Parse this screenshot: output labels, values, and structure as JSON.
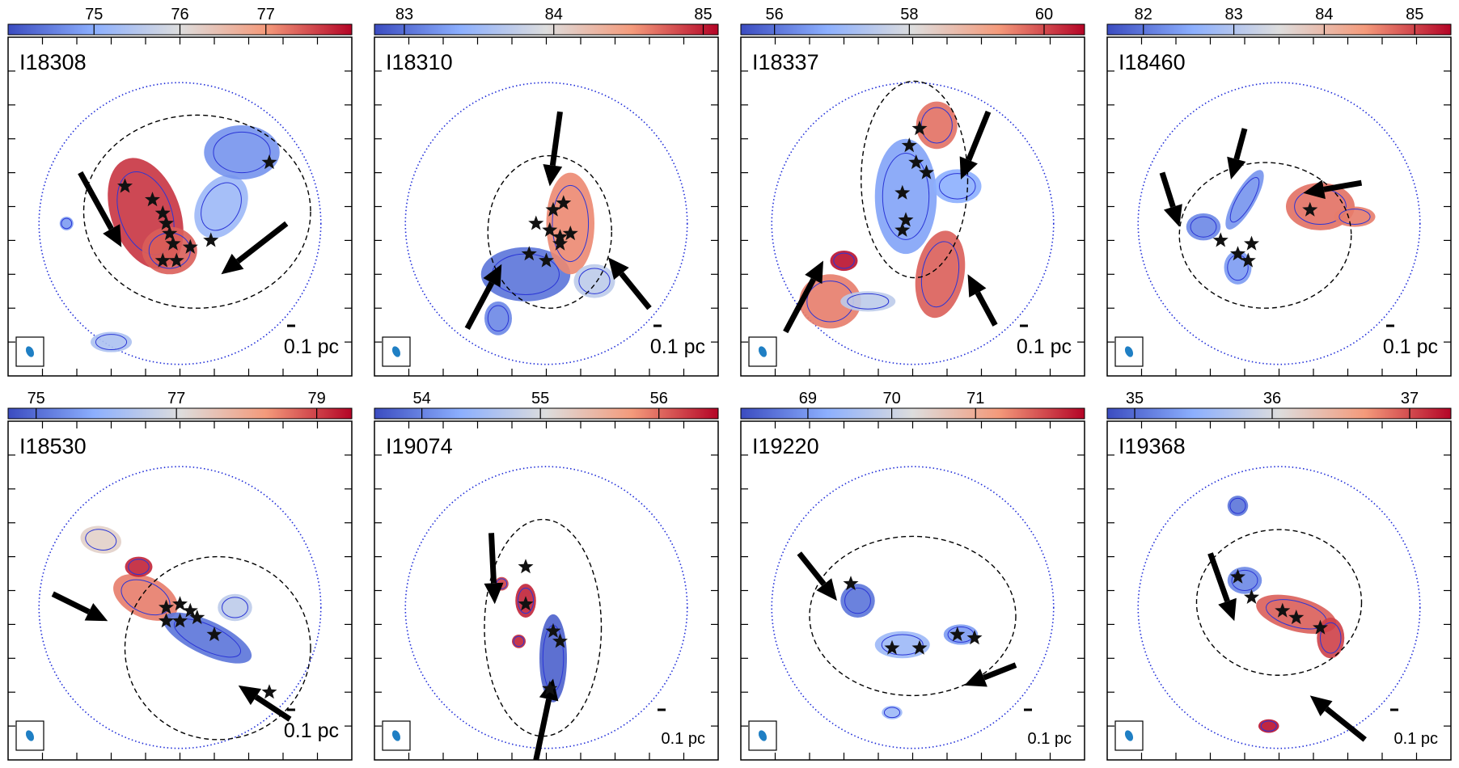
{
  "colorbar_colors": [
    "#3b4cc0",
    "#8caffe",
    "#dddddd",
    "#f49a7b",
    "#b40426"
  ],
  "colors": {
    "contour": "#2a35d6",
    "circle": "#1d2bd8",
    "ellipse": "#000000",
    "beam": "#1f7fc4",
    "star": "#111111"
  },
  "chart_data": [
    {
      "type": "map",
      "label": "I18308",
      "scale_bar": "0.1 pc",
      "colorbar": {
        "min": 74.0,
        "max": 78.0,
        "ticks": [
          75,
          76,
          77
        ]
      },
      "stars": [
        [
          0.34,
          0.44
        ],
        [
          0.42,
          0.48
        ],
        [
          0.45,
          0.52
        ],
        [
          0.46,
          0.55
        ],
        [
          0.47,
          0.58
        ],
        [
          0.48,
          0.61
        ],
        [
          0.53,
          0.62
        ],
        [
          0.59,
          0.6
        ],
        [
          0.45,
          0.66
        ],
        [
          0.49,
          0.66
        ],
        [
          0.76,
          0.37
        ]
      ],
      "arrows": [
        [
          0.21,
          0.4,
          0.33,
          0.62
        ],
        [
          0.81,
          0.55,
          0.62,
          0.7
        ]
      ],
      "blobs": [
        [
          0.4,
          0.52,
          0.1,
          0.17,
          -20,
          0.92
        ],
        [
          0.47,
          0.63,
          0.08,
          0.07,
          0,
          0.85
        ],
        [
          0.62,
          0.5,
          0.07,
          0.1,
          30,
          0.3
        ],
        [
          0.68,
          0.34,
          0.11,
          0.08,
          0,
          0.18
        ],
        [
          0.3,
          0.9,
          0.06,
          0.03,
          0,
          0.35
        ],
        [
          0.17,
          0.55,
          0.02,
          0.02,
          0,
          0.2
        ]
      ]
    },
    {
      "type": "map",
      "label": "I18310",
      "scale_bar": "0.1 pc",
      "colorbar": {
        "min": 82.8,
        "max": 85.1,
        "ticks": [
          83,
          84,
          85
        ]
      },
      "stars": [
        [
          0.45,
          0.64
        ],
        [
          0.5,
          0.66
        ],
        [
          0.47,
          0.55
        ],
        [
          0.51,
          0.57
        ],
        [
          0.54,
          0.59
        ],
        [
          0.57,
          0.58
        ],
        [
          0.54,
          0.61
        ],
        [
          0.55,
          0.49
        ],
        [
          0.52,
          0.51
        ]
      ],
      "arrows": [
        [
          0.54,
          0.22,
          0.51,
          0.44
        ],
        [
          0.27,
          0.86,
          0.37,
          0.67
        ],
        [
          0.8,
          0.8,
          0.68,
          0.65
        ]
      ],
      "blobs": [
        [
          0.44,
          0.7,
          0.13,
          0.08,
          0,
          0.1
        ],
        [
          0.57,
          0.55,
          0.07,
          0.15,
          0,
          0.78
        ],
        [
          0.64,
          0.72,
          0.06,
          0.05,
          0,
          0.4
        ],
        [
          0.36,
          0.83,
          0.04,
          0.05,
          0,
          0.15
        ]
      ]
    },
    {
      "type": "map",
      "label": "I18337",
      "scale_bar": "0.1 pc",
      "colorbar": {
        "min": 55.5,
        "max": 60.6,
        "ticks": [
          56,
          58,
          60
        ]
      },
      "stars": [
        [
          0.52,
          0.27
        ],
        [
          0.49,
          0.32
        ],
        [
          0.51,
          0.37
        ],
        [
          0.54,
          0.4
        ],
        [
          0.47,
          0.46
        ],
        [
          0.48,
          0.54
        ],
        [
          0.47,
          0.57
        ]
      ],
      "arrows": [
        [
          0.72,
          0.22,
          0.64,
          0.42
        ],
        [
          0.13,
          0.87,
          0.24,
          0.66
        ],
        [
          0.74,
          0.85,
          0.66,
          0.7
        ]
      ],
      "blobs": [
        [
          0.48,
          0.47,
          0.09,
          0.17,
          0,
          0.22
        ],
        [
          0.57,
          0.26,
          0.06,
          0.07,
          0,
          0.82
        ],
        [
          0.58,
          0.7,
          0.07,
          0.13,
          10,
          0.85
        ],
        [
          0.26,
          0.78,
          0.09,
          0.08,
          0,
          0.8
        ],
        [
          0.3,
          0.66,
          0.04,
          0.03,
          0,
          0.98
        ],
        [
          0.37,
          0.78,
          0.08,
          0.03,
          0,
          0.4
        ],
        [
          0.63,
          0.44,
          0.07,
          0.05,
          0,
          0.25
        ]
      ]
    },
    {
      "type": "map",
      "label": "I18460",
      "scale_bar": "0.1 pc",
      "colorbar": {
        "min": 81.6,
        "max": 85.4,
        "ticks": [
          82,
          83,
          84,
          85
        ]
      },
      "stars": [
        [
          0.33,
          0.6
        ],
        [
          0.42,
          0.61
        ],
        [
          0.38,
          0.64
        ],
        [
          0.41,
          0.66
        ],
        [
          0.59,
          0.51
        ]
      ],
      "arrows": [
        [
          0.16,
          0.4,
          0.21,
          0.56
        ],
        [
          0.4,
          0.27,
          0.36,
          0.42
        ],
        [
          0.74,
          0.43,
          0.57,
          0.46
        ]
      ],
      "blobs": [
        [
          0.28,
          0.56,
          0.05,
          0.04,
          0,
          0.15
        ],
        [
          0.4,
          0.48,
          0.03,
          0.1,
          30,
          0.18
        ],
        [
          0.38,
          0.68,
          0.04,
          0.05,
          0,
          0.2
        ],
        [
          0.62,
          0.5,
          0.1,
          0.07,
          0,
          0.82
        ],
        [
          0.72,
          0.53,
          0.06,
          0.03,
          0,
          0.8
        ]
      ]
    },
    {
      "type": "map",
      "label": "I18530",
      "scale_bar": "0.1 pc",
      "colorbar": {
        "min": 74.6,
        "max": 79.5,
        "ticks": [
          75,
          77,
          79
        ]
      },
      "stars": [
        [
          0.46,
          0.55
        ],
        [
          0.5,
          0.54
        ],
        [
          0.53,
          0.56
        ],
        [
          0.46,
          0.59
        ],
        [
          0.5,
          0.59
        ],
        [
          0.55,
          0.58
        ],
        [
          0.6,
          0.63
        ],
        [
          0.76,
          0.8
        ]
      ],
      "arrows": [
        [
          0.13,
          0.51,
          0.29,
          0.59
        ],
        [
          0.82,
          0.88,
          0.67,
          0.78
        ]
      ],
      "blobs": [
        [
          0.4,
          0.52,
          0.1,
          0.06,
          25,
          0.8
        ],
        [
          0.58,
          0.64,
          0.14,
          0.05,
          25,
          0.1
        ],
        [
          0.38,
          0.43,
          0.04,
          0.03,
          0,
          0.95
        ],
        [
          0.27,
          0.35,
          0.06,
          0.04,
          10,
          0.55
        ],
        [
          0.66,
          0.55,
          0.05,
          0.04,
          0,
          0.4
        ]
      ]
    },
    {
      "type": "map",
      "label": "I19074",
      "scale_bar": "0.1 pc",
      "colorbar": {
        "min": 53.6,
        "max": 56.5,
        "ticks": [
          54,
          55,
          56
        ]
      },
      "stars": [
        [
          0.44,
          0.43
        ],
        [
          0.44,
          0.54
        ],
        [
          0.52,
          0.62
        ],
        [
          0.54,
          0.65
        ],
        [
          0.51,
          0.79
        ]
      ],
      "arrows": [
        [
          0.34,
          0.33,
          0.35,
          0.54
        ],
        [
          0.47,
          1.0,
          0.52,
          0.76
        ]
      ],
      "blobs": [
        [
          0.44,
          0.53,
          0.03,
          0.05,
          0,
          0.95
        ],
        [
          0.52,
          0.7,
          0.04,
          0.13,
          0,
          0.05
        ],
        [
          0.37,
          0.48,
          0.02,
          0.02,
          0,
          0.9
        ],
        [
          0.42,
          0.65,
          0.02,
          0.02,
          0,
          0.95
        ]
      ]
    },
    {
      "type": "map",
      "label": "I19220",
      "scale_bar": "0.1 pc",
      "colorbar": {
        "min": 68.2,
        "max": 72.3,
        "ticks": [
          69,
          70,
          71
        ]
      },
      "stars": [
        [
          0.32,
          0.48
        ],
        [
          0.44,
          0.67
        ],
        [
          0.52,
          0.67
        ],
        [
          0.63,
          0.63
        ],
        [
          0.68,
          0.64
        ]
      ],
      "arrows": [
        [
          0.17,
          0.39,
          0.28,
          0.53
        ],
        [
          0.8,
          0.72,
          0.65,
          0.78
        ]
      ],
      "blobs": [
        [
          0.34,
          0.53,
          0.05,
          0.05,
          0,
          0.1
        ],
        [
          0.47,
          0.66,
          0.08,
          0.04,
          0,
          0.3
        ],
        [
          0.64,
          0.63,
          0.05,
          0.03,
          0,
          0.2
        ],
        [
          0.44,
          0.86,
          0.03,
          0.02,
          0,
          0.3
        ]
      ]
    },
    {
      "type": "map",
      "label": "I19368",
      "scale_bar": "0.1 pc",
      "colorbar": {
        "min": 34.8,
        "max": 37.3,
        "ticks": [
          35,
          36,
          37
        ]
      },
      "stars": [
        [
          0.38,
          0.46
        ],
        [
          0.42,
          0.52
        ],
        [
          0.51,
          0.56
        ],
        [
          0.55,
          0.58
        ],
        [
          0.62,
          0.61
        ]
      ],
      "arrows": [
        [
          0.3,
          0.39,
          0.37,
          0.59
        ],
        [
          0.75,
          0.94,
          0.59,
          0.81
        ]
      ],
      "blobs": [
        [
          0.4,
          0.47,
          0.05,
          0.04,
          0,
          0.15
        ],
        [
          0.55,
          0.57,
          0.12,
          0.05,
          15,
          0.85
        ],
        [
          0.65,
          0.64,
          0.04,
          0.06,
          0,
          0.9
        ],
        [
          0.38,
          0.25,
          0.03,
          0.03,
          0,
          0.1
        ],
        [
          0.47,
          0.9,
          0.03,
          0.02,
          0,
          0.98
        ]
      ]
    }
  ]
}
